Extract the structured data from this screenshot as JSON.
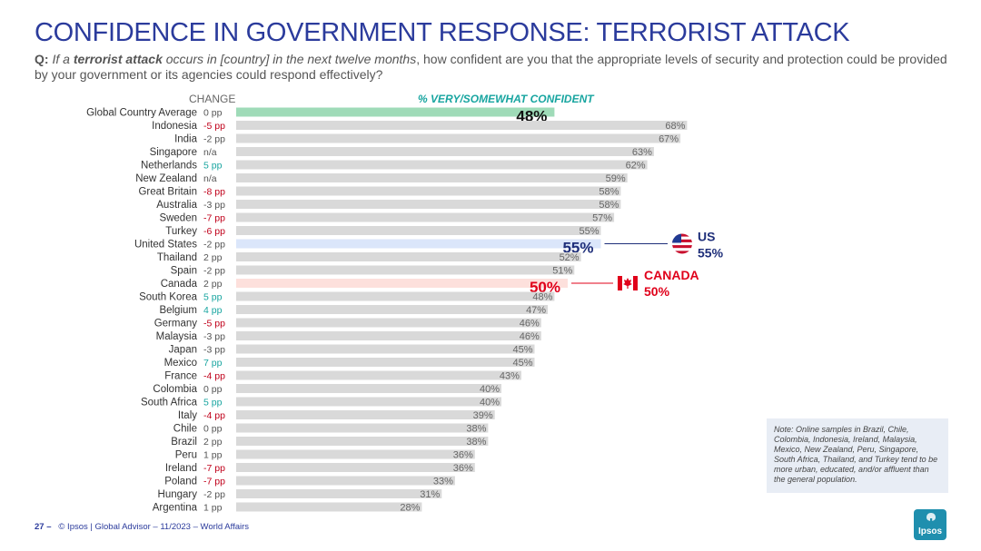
{
  "title": "CONFIDENCE IN GOVERNMENT RESPONSE: TERRORIST ATTACK",
  "question": {
    "prefix": "Q:",
    "italic_before": "If a ",
    "bold_italic": "terrorist attack",
    "italic_after": " occurs in [country] in the next twelve months",
    "rest": ", how confident are you that the appropriate levels of security and protection could be provided by your government or its agencies could respond effectively?"
  },
  "headers": {
    "change": "CHANGE",
    "confident": "% VERY/SOMEWHAT CONFIDENT"
  },
  "callouts": {
    "us": {
      "label": "US",
      "value": "55%"
    },
    "canada": {
      "label": "CANADA",
      "value": "50%"
    }
  },
  "note": "Note: Online samples in Brazil, Chile, Colombia, Indonesia, Ireland, Malaysia, Mexico, New Zealand, Peru, Singapore, South Africa, Thailand, and Turkey tend to be more urban, educated, and/or affluent than the general population.",
  "footer": {
    "page": "27 –",
    "text": "© Ipsos | Global Advisor – 11/2023 – World Affairs"
  },
  "logo": "Ipsos",
  "colors": {
    "title": "#2b3b9c",
    "bar": "#d9d9d9",
    "global_bar": "#9fdbb8",
    "us_bar": "#dbe6fa",
    "canada_bar": "#fde0dc",
    "positive": "#18a5a0",
    "negative": "#c0001a",
    "neutral": "#555555",
    "us_text": "#1f2f7a",
    "canada_text": "#e0001a"
  },
  "chart_data": {
    "type": "bar",
    "orientation": "horizontal",
    "series_label": "% VERY/SOMEWHAT CONFIDENT",
    "xlim": [
      0,
      100
    ],
    "categories": [
      "Global Country Average",
      "Indonesia",
      "India",
      "Singapore",
      "Netherlands",
      "New Zealand",
      "Great Britain",
      "Australia",
      "Sweden",
      "Turkey",
      "United States",
      "Thailand",
      "Spain",
      "Canada",
      "South Korea",
      "Belgium",
      "Germany",
      "Malaysia",
      "Japan",
      "Mexico",
      "France",
      "Colombia",
      "South Africa",
      "Italy",
      "Chile",
      "Brazil",
      "Peru",
      "Ireland",
      "Poland",
      "Hungary",
      "Argentina"
    ],
    "values": [
      48,
      68,
      67,
      63,
      62,
      59,
      58,
      58,
      57,
      55,
      55,
      52,
      51,
      50,
      48,
      47,
      46,
      46,
      45,
      45,
      43,
      40,
      40,
      39,
      38,
      38,
      36,
      36,
      33,
      31,
      28
    ],
    "value_labels": [
      "48%",
      "68%",
      "67%",
      "63%",
      "62%",
      "59%",
      "58%",
      "58%",
      "57%",
      "55%",
      "55%",
      "52%",
      "51%",
      "50%",
      "48%",
      "47%",
      "46%",
      "46%",
      "45%",
      "45%",
      "43%",
      "40%",
      "40%",
      "39%",
      "38%",
      "38%",
      "36%",
      "36%",
      "33%",
      "31%",
      "28%"
    ],
    "change": [
      "0 pp",
      "-5 pp",
      "-2 pp",
      "n/a",
      "5 pp",
      "n/a",
      "-8 pp",
      "-3 pp",
      "-7 pp",
      "-6 pp",
      "-2 pp",
      "2 pp",
      "-2 pp",
      "2 pp",
      "5 pp",
      "4 pp",
      "-5 pp",
      "-3 pp",
      "-3 pp",
      "7 pp",
      "-4 pp",
      "0 pp",
      "5 pp",
      "-4 pp",
      "0 pp",
      "2 pp",
      "1 pp",
      "-7 pp",
      "-7 pp",
      "-2 pp",
      "1 pp"
    ],
    "change_color": [
      "neutral",
      "negative",
      "neutral",
      "neutral",
      "positive",
      "neutral",
      "negative",
      "neutral",
      "negative",
      "negative",
      "neutral",
      "neutral",
      "neutral",
      "neutral",
      "positive",
      "positive",
      "negative",
      "neutral",
      "neutral",
      "positive",
      "negative",
      "neutral",
      "positive",
      "negative",
      "neutral",
      "neutral",
      "neutral",
      "negative",
      "negative",
      "neutral",
      "neutral"
    ],
    "highlights": {
      "Global Country Average": "global",
      "United States": "us",
      "Canada": "canada"
    }
  }
}
